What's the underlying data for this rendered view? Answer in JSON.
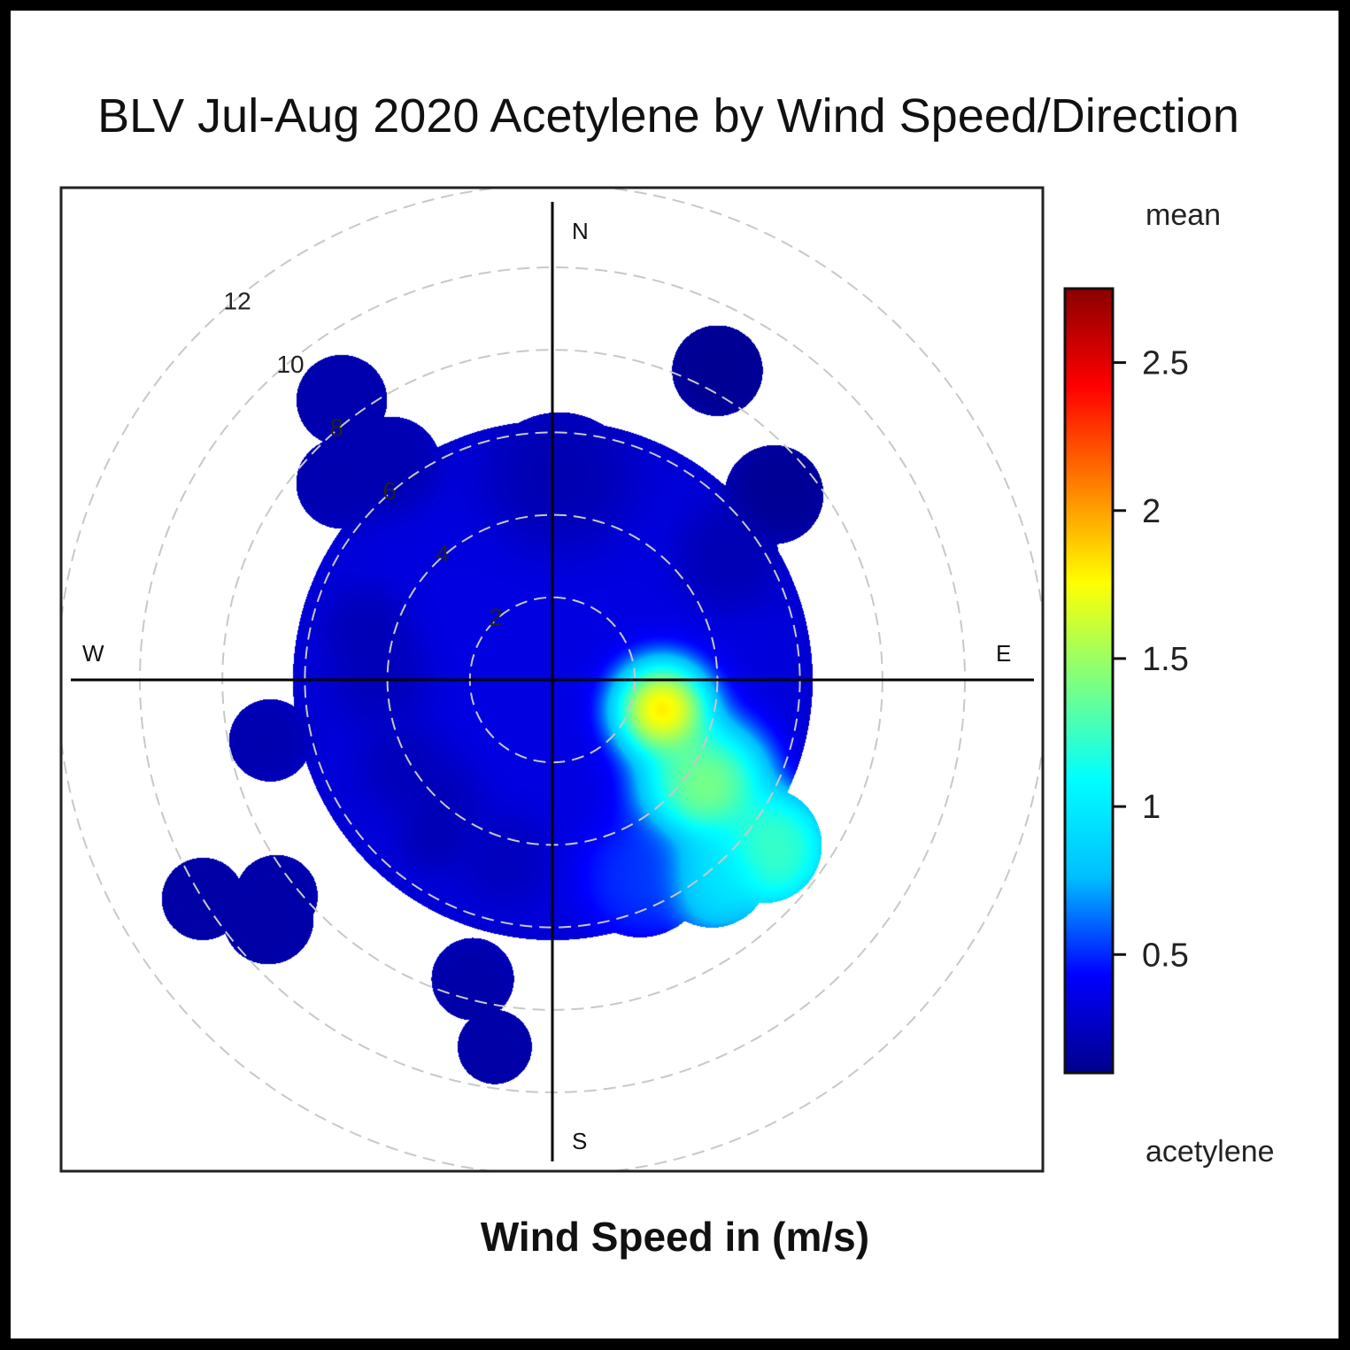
{
  "title": "BLV Jul-Aug 2020 Acetylene by Wind Speed/Direction",
  "xlabel": "Wind Speed in (m/s)",
  "compass": {
    "n": "N",
    "e": "E",
    "s": "S",
    "w": "W"
  },
  "colorbar": {
    "top_label": "mean",
    "bottom_label": "acetylene",
    "ticks": [
      "0.5",
      "1",
      "1.5",
      "2",
      "2.5"
    ],
    "tick_values": [
      0.5,
      1,
      1.5,
      2,
      2.5
    ],
    "range": [
      0.1,
      2.75
    ],
    "colors": [
      "#00008b",
      "#0000ff",
      "#00bfff",
      "#00ffff",
      "#7fff7f",
      "#ffff00",
      "#ff7f00",
      "#ff0000",
      "#8b0000"
    ]
  },
  "chart_data": {
    "type": "polar-heatmap",
    "title": "BLV Jul-Aug 2020 Acetylene by Wind Speed/Direction",
    "xlabel": "Wind Speed in (m/s)",
    "pollutant": "acetylene",
    "statistic": "mean",
    "radial_axis": {
      "ticks": [
        2,
        4,
        6,
        8,
        10,
        12
      ],
      "unit": "m/s",
      "max": 12
    },
    "background": 0.18,
    "blobs": [
      {
        "speed": 0,
        "direction": 0,
        "radius": 6.3,
        "value": 0.35
      },
      {
        "speed": 2.6,
        "direction": 105,
        "radius": 1.5,
        "value": 2.7
      },
      {
        "speed": 4.2,
        "direction": 125,
        "radius": 1.8,
        "value": 1.7
      },
      {
        "speed": 6.5,
        "direction": 128,
        "radius": 1.4,
        "value": 1.3
      },
      {
        "speed": 6.0,
        "direction": 140,
        "radius": 1.4,
        "value": 1.0
      },
      {
        "speed": 5.0,
        "direction": 155,
        "radius": 1.7,
        "value": 0.55
      },
      {
        "speed": 8.5,
        "direction": 28,
        "radius": 1.1,
        "value": 0.12
      },
      {
        "speed": 7.0,
        "direction": 50,
        "radius": 1.2,
        "value": 0.12
      },
      {
        "speed": 5.0,
        "direction": 55,
        "radius": 1.4,
        "value": 0.2
      },
      {
        "speed": 4.5,
        "direction": 2,
        "radius": 2.0,
        "value": 0.18
      },
      {
        "speed": 8.5,
        "direction": 323,
        "radius": 1.1,
        "value": 0.2
      },
      {
        "speed": 7.0,
        "direction": 313,
        "radius": 1.1,
        "value": 0.2
      },
      {
        "speed": 6.5,
        "direction": 323,
        "radius": 1.2,
        "value": 0.2
      },
      {
        "speed": 4.5,
        "direction": 285,
        "radius": 1.2,
        "value": 0.2
      },
      {
        "speed": 4.0,
        "direction": 270,
        "radius": 1.4,
        "value": 0.2
      },
      {
        "speed": 4.0,
        "direction": 240,
        "radius": 1.3,
        "value": 0.2
      },
      {
        "speed": 3.8,
        "direction": 222,
        "radius": 1.2,
        "value": 0.2
      },
      {
        "speed": 4.3,
        "direction": 195,
        "radius": 1.3,
        "value": 0.22
      },
      {
        "speed": 7.0,
        "direction": 258,
        "radius": 1.0,
        "value": 0.2
      },
      {
        "speed": 9.0,
        "direction": 230,
        "radius": 1.1,
        "value": 0.18
      },
      {
        "speed": 10.0,
        "direction": 238,
        "radius": 1.0,
        "value": 0.18
      },
      {
        "speed": 8.5,
        "direction": 232,
        "radius": 1.0,
        "value": 0.18
      },
      {
        "speed": 4.6,
        "direction": 217,
        "radius": 1.0,
        "value": 0.2
      },
      {
        "speed": 7.5,
        "direction": 195,
        "radius": 1.0,
        "value": 0.18
      },
      {
        "speed": 9.0,
        "direction": 189,
        "radius": 0.9,
        "value": 0.18
      }
    ]
  }
}
